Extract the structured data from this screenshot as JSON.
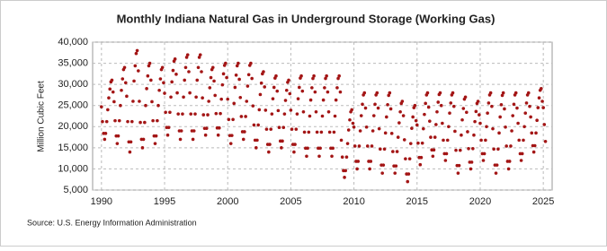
{
  "chart_data": {
    "type": "scatter",
    "title": "Monthly Indiana Natural Gas in Underground Storage (Working Gas)",
    "y_label": "Million Cubic Feet",
    "source": "Source: U.S. Energy Information Administration",
    "color": "#a31515",
    "grid": true,
    "xlim": [
      1989.3,
      2025.7
    ],
    "ylim": [
      5000,
      40000
    ],
    "xticks": [
      1990,
      1995,
      2000,
      2005,
      2010,
      2015,
      2020,
      2025
    ],
    "yticks": [
      {
        "value": 5000,
        "label": "5,000"
      },
      {
        "value": 10000,
        "label": "10,000"
      },
      {
        "value": 15000,
        "label": "15,000"
      },
      {
        "value": 20000,
        "label": "20,000"
      },
      {
        "value": 25000,
        "label": "25,000"
      },
      {
        "value": 30000,
        "label": "30,000"
      },
      {
        "value": 35000,
        "label": "35,000"
      },
      {
        "value": 40000,
        "label": "40,000"
      }
    ],
    "x": [
      1990.0,
      1990.08,
      1990.17,
      1990.25,
      1990.33,
      1990.42,
      1990.5,
      1990.58,
      1990.67,
      1990.75,
      1990.83,
      1990.92,
      1991.0,
      1991.08,
      1991.17,
      1991.25,
      1991.33,
      1991.42,
      1991.5,
      1991.58,
      1991.67,
      1991.75,
      1991.83,
      1991.92,
      1992.0,
      1992.08,
      1992.17,
      1992.25,
      1992.33,
      1992.42,
      1992.5,
      1992.58,
      1992.67,
      1992.75,
      1992.83,
      1992.92,
      1993.0,
      1993.08,
      1993.17,
      1993.25,
      1993.33,
      1993.42,
      1993.5,
      1993.58,
      1993.67,
      1993.75,
      1993.83,
      1993.92,
      1994.0,
      1994.08,
      1994.17,
      1994.25,
      1994.33,
      1994.42,
      1994.5,
      1994.58,
      1994.67,
      1994.75,
      1994.83,
      1994.92,
      1995.0,
      1995.08,
      1995.17,
      1995.25,
      1995.33,
      1995.42,
      1995.5,
      1995.58,
      1995.67,
      1995.75,
      1995.83,
      1995.92,
      1996.0,
      1996.08,
      1996.17,
      1996.25,
      1996.33,
      1996.42,
      1996.5,
      1996.58,
      1996.67,
      1996.75,
      1996.83,
      1996.92,
      1997.0,
      1997.08,
      1997.17,
      1997.25,
      1997.33,
      1997.42,
      1997.5,
      1997.58,
      1997.67,
      1997.75,
      1997.83,
      1997.92,
      1998.0,
      1998.08,
      1998.17,
      1998.25,
      1998.33,
      1998.42,
      1998.5,
      1998.58,
      1998.67,
      1998.75,
      1998.83,
      1998.92,
      1999.0,
      1999.08,
      1999.17,
      1999.25,
      1999.33,
      1999.42,
      1999.5,
      1999.58,
      1999.67,
      1999.75,
      1999.83,
      1999.92,
      2000.0,
      2000.08,
      2000.17,
      2000.25,
      2000.33,
      2000.42,
      2000.5,
      2000.58,
      2000.67,
      2000.75,
      2000.83,
      2000.92,
      2001.0,
      2001.08,
      2001.17,
      2001.25,
      2001.33,
      2001.42,
      2001.5,
      2001.58,
      2001.67,
      2001.75,
      2001.83,
      2001.92,
      2002.0,
      2002.08,
      2002.17,
      2002.25,
      2002.33,
      2002.42,
      2002.5,
      2002.58,
      2002.67,
      2002.75,
      2002.83,
      2002.92,
      2003.0,
      2003.08,
      2003.17,
      2003.25,
      2003.33,
      2003.42,
      2003.5,
      2003.58,
      2003.67,
      2003.75,
      2003.83,
      2003.92,
      2004.0,
      2004.08,
      2004.17,
      2004.25,
      2004.33,
      2004.42,
      2004.5,
      2004.58,
      2004.67,
      2004.75,
      2004.83,
      2004.92,
      2005.0,
      2005.08,
      2005.17,
      2005.25,
      2005.33,
      2005.42,
      2005.5,
      2005.58,
      2005.67,
      2005.75,
      2005.83,
      2005.92,
      2006.0,
      2006.08,
      2006.17,
      2006.25,
      2006.33,
      2006.42,
      2006.5,
      2006.58,
      2006.67,
      2006.75,
      2006.83,
      2006.92,
      2007.0,
      2007.08,
      2007.17,
      2007.25,
      2007.33,
      2007.42,
      2007.5,
      2007.58,
      2007.67,
      2007.75,
      2007.83,
      2007.92,
      2008.0,
      2008.08,
      2008.17,
      2008.25,
      2008.33,
      2008.42,
      2008.5,
      2008.58,
      2008.67,
      2008.75,
      2008.83,
      2008.92,
      2009.0,
      2009.08,
      2009.17,
      2009.25,
      2009.33,
      2009.42,
      2009.5,
      2009.58,
      2009.67,
      2009.75,
      2009.83,
      2009.92,
      2010.0,
      2010.08,
      2010.17,
      2010.25,
      2010.33,
      2010.42,
      2010.5,
      2010.58,
      2010.67,
      2010.75,
      2010.83,
      2010.92,
      2011.0,
      2011.08,
      2011.17,
      2011.25,
      2011.33,
      2011.42,
      2011.5,
      2011.58,
      2011.67,
      2011.75,
      2011.83,
      2011.92,
      2012.0,
      2012.08,
      2012.17,
      2012.25,
      2012.33,
      2012.42,
      2012.5,
      2012.58,
      2012.67,
      2012.75,
      2012.83,
      2012.92,
      2013.0,
      2013.08,
      2013.17,
      2013.25,
      2013.33,
      2013.42,
      2013.5,
      2013.58,
      2013.67,
      2013.75,
      2013.83,
      2013.92,
      2014.0,
      2014.08,
      2014.17,
      2014.25,
      2014.33,
      2014.42,
      2014.5,
      2014.58,
      2014.67,
      2014.75,
      2014.83,
      2014.92,
      2015.0,
      2015.08,
      2015.17,
      2015.25,
      2015.33,
      2015.42,
      2015.5,
      2015.58,
      2015.67,
      2015.75,
      2015.83,
      2015.92,
      2016.0,
      2016.08,
      2016.17,
      2016.25,
      2016.33,
      2016.42,
      2016.5,
      2016.58,
      2016.67,
      2016.75,
      2016.83,
      2016.92,
      2017.0,
      2017.08,
      2017.17,
      2017.25,
      2017.33,
      2017.42,
      2017.5,
      2017.58,
      2017.67,
      2017.75,
      2017.83,
      2017.92,
      2018.0,
      2018.08,
      2018.17,
      2018.25,
      2018.33,
      2018.42,
      2018.5,
      2018.58,
      2018.67,
      2018.75,
      2018.83,
      2018.92,
      2019.0,
      2019.08,
      2019.17,
      2019.25,
      2019.33,
      2019.42,
      2019.5,
      2019.58,
      2019.67,
      2019.75,
      2019.83,
      2019.92,
      2020.0,
      2020.08,
      2020.17,
      2020.25,
      2020.33,
      2020.42,
      2020.5,
      2020.58,
      2020.67,
      2020.75,
      2020.83,
      2020.92,
      2021.0,
      2021.08,
      2021.17,
      2021.25,
      2021.33,
      2021.42,
      2021.5,
      2021.58,
      2021.67,
      2021.75,
      2021.83,
      2021.92,
      2022.0,
      2022.08,
      2022.17,
      2022.25,
      2022.33,
      2022.42,
      2022.5,
      2022.58,
      2022.67,
      2022.75,
      2022.83,
      2022.92,
      2023.0,
      2023.08,
      2023.17,
      2023.25,
      2023.33,
      2023.42,
      2023.5,
      2023.58,
      2023.67,
      2023.75,
      2023.83,
      2023.92,
      2024.0,
      2024.08,
      2024.17,
      2024.25,
      2024.33,
      2024.42,
      2024.5,
      2024.58,
      2024.67,
      2024.75,
      2024.83,
      2024.92,
      2025.0,
      2025.08,
      2025.17
    ],
    "values": [
      24700,
      21200,
      18400,
      17000,
      18400,
      21200,
      24000,
      26800,
      28900,
      30600,
      31000,
      28200,
      25900,
      21400,
      17800,
      16000,
      17800,
      21400,
      25000,
      28600,
      31300,
      33500,
      34000,
      30400,
      27200,
      21200,
      16400,
      14000,
      16400,
      21200,
      26000,
      30800,
      34400,
      37300,
      38000,
      33200,
      26000,
      21000,
      17000,
      15000,
      17000,
      21000,
      25000,
      29000,
      32000,
      34400,
      35000,
      31000,
      25900,
      21400,
      17800,
      16000,
      17800,
      21400,
      25000,
      28600,
      31300,
      33500,
      34000,
      30400,
      27900,
      23400,
      19800,
      18000,
      19800,
      23400,
      27000,
      30600,
      33300,
      35500,
      36000,
      32400,
      28000,
      23000,
      19000,
      17000,
      19000,
      23000,
      27000,
      31000,
      34000,
      36400,
      37000,
      33000,
      28000,
      23000,
      19000,
      17000,
      19000,
      23000,
      27000,
      31000,
      34000,
      36400,
      37000,
      33000,
      26800,
      22800,
      19600,
      18000,
      19600,
      22800,
      26000,
      29200,
      31600,
      33500,
      34000,
      30800,
      27400,
      23100,
      19700,
      18000,
      19700,
      23100,
      26500,
      29900,
      32500,
      34500,
      35000,
      31600,
      26500,
      21700,
      17900,
      16000,
      17900,
      21700,
      25500,
      29300,
      32200,
      34400,
      35000,
      31200,
      26900,
      22400,
      18800,
      17000,
      18800,
      22400,
      26000,
      29600,
      32300,
      34500,
      35000,
      31400,
      24900,
      20400,
      16800,
      15000,
      16800,
      20400,
      24000,
      27600,
      30300,
      32500,
      33000,
      29400,
      23900,
      19400,
      15800,
      14000,
      15800,
      19400,
      23000,
      26600,
      29300,
      31500,
      32000,
      28400,
      23800,
      19800,
      16600,
      15000,
      16600,
      19800,
      23000,
      26200,
      28600,
      30500,
      31000,
      27800,
      23900,
      19400,
      15800,
      14000,
      15800,
      19400,
      23000,
      26600,
      29300,
      31500,
      32000,
      28400,
      23500,
      18700,
      14900,
      13000,
      14900,
      18700,
      22500,
      26300,
      29200,
      31400,
      32000,
      28200,
      23500,
      18700,
      14900,
      13000,
      14900,
      18700,
      22500,
      26300,
      29200,
      31400,
      32000,
      28200,
      23500,
      18700,
      14900,
      13000,
      14900,
      18700,
      22500,
      26300,
      29200,
      31400,
      32000,
      28200,
      16800,
      12800,
      9600,
      8000,
      9600,
      12800,
      16000,
      19200,
      21600,
      23500,
      24000,
      20800,
      19900,
      15400,
      11800,
      10000,
      11800,
      15400,
      19000,
      22600,
      25300,
      27500,
      28000,
      24400,
      19900,
      15400,
      11800,
      10000,
      11800,
      15400,
      19000,
      22600,
      25300,
      27500,
      28000,
      24400,
      19500,
      14700,
      10900,
      9000,
      10900,
      14700,
      18500,
      22300,
      25200,
      27400,
      28000,
      24200,
      18400,
      14100,
      10700,
      9000,
      10700,
      14100,
      17500,
      20900,
      23500,
      25500,
      26000,
      22600,
      16900,
      12400,
      8800,
      7000,
      8800,
      12400,
      16000,
      19600,
      22300,
      24500,
      25000,
      21400,
      20400,
      16100,
      12700,
      11000,
      12700,
      16100,
      19500,
      22900,
      25500,
      27500,
      28000,
      24600,
      21300,
      17500,
      14500,
      13000,
      14500,
      17500,
      20500,
      23500,
      25800,
      27600,
      28000,
      25000,
      20800,
      16800,
      13600,
      12000,
      13600,
      16800,
      20000,
      23200,
      25600,
      27500,
      28000,
      24800,
      18900,
      14400,
      10800,
      9000,
      10800,
      14400,
      18000,
      21600,
      24300,
      26500,
      27000,
      23400,
      18800,
      14800,
      11600,
      10000,
      11600,
      14800,
      18000,
      21200,
      23600,
      25500,
      26000,
      22800,
      20800,
      16800,
      13600,
      12000,
      13600,
      16800,
      20000,
      23200,
      25600,
      27500,
      28000,
      24800,
      19500,
      14700,
      10900,
      9000,
      10900,
      14700,
      18500,
      22300,
      25200,
      27400,
      28000,
      24200,
      19900,
      15400,
      11800,
      10000,
      11800,
      15400,
      19000,
      22600,
      25300,
      27500,
      28000,
      24400,
      20800,
      16800,
      13600,
      12000,
      13600,
      16800,
      20000,
      23200,
      25600,
      27500,
      28000,
      24800,
      22300,
      18500,
      15500,
      14000,
      15500,
      18500,
      21500,
      24500,
      26800,
      28600,
      29000,
      26000,
      24500,
      20500,
      16500
    ]
  }
}
